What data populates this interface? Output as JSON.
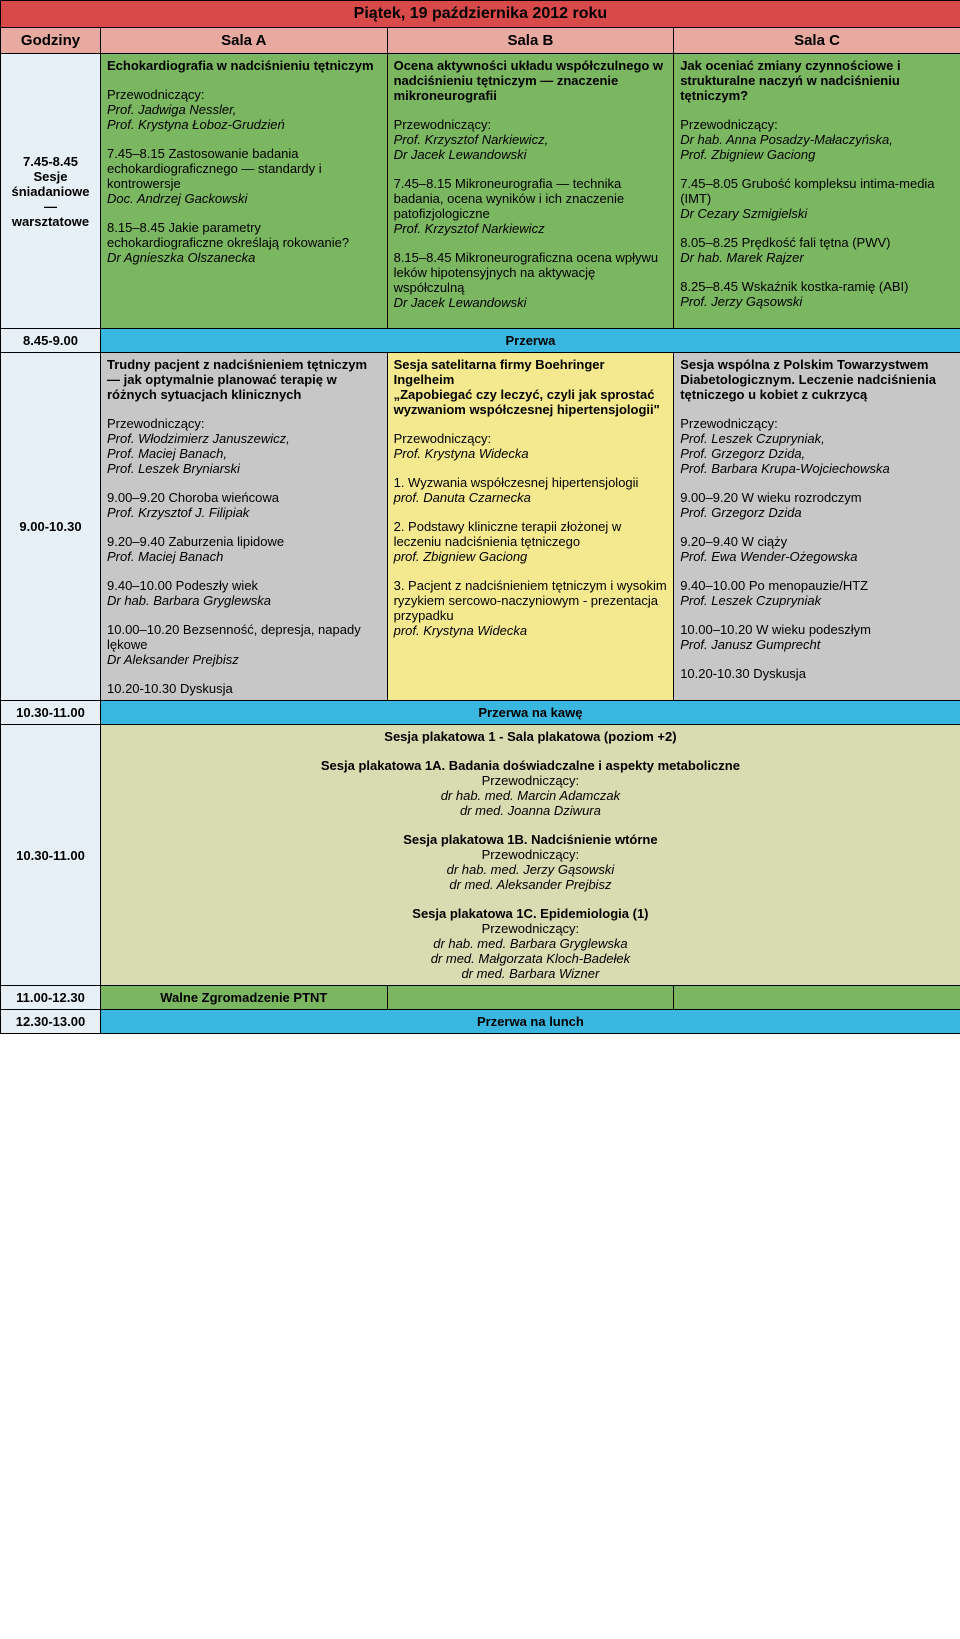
{
  "colors": {
    "day_header": "#d84a4a",
    "col_header": "#e8a9a0",
    "time_cell": "#e7eff7",
    "green": "#7bb661",
    "cyan": "#3ab7e0",
    "grey": "#c7c7c7",
    "yellow": "#f4e98f",
    "beige": "#d9dbb1",
    "border": "#000000"
  },
  "day_title": "Piątek, 19 października 2012 roku",
  "columns": {
    "time": "Godziny",
    "roomA": "Sala A",
    "roomB": "Sala B",
    "roomC": "Sala C"
  },
  "r1": {
    "time": "7.45-8.45\nSesje śniadaniowe — warsztatowe",
    "A": {
      "title": "Echokardiografia w nadciśnieniu tętniczym",
      "chair_label": "Przewodniczący:",
      "chair1": "Prof. Jadwiga Nessler,",
      "chair2": "Prof. Krystyna Łoboz-Grudzień",
      "t1": "7.45–8.15 Zastosowanie badania echokardiograficznego — standardy i kontrowersje",
      "s1": "Doc. Andrzej Gackowski",
      "t2": "8.15–8.45 Jakie parametry echokardiograficzne określają rokowanie?",
      "s2": "Dr Agnieszka Olszanecka"
    },
    "B": {
      "title": "Ocena aktywności układu współczulnego w nadciśnieniu tętniczym — znaczenie mikroneurografii",
      "chair_label": "Przewodniczący:",
      "chair1": "Prof. Krzysztof Narkiewicz,",
      "chair2": "Dr Jacek Lewandowski",
      "t1": "7.45–8.15 Mikroneurografia — technika badania, ocena wyników i ich znaczenie patofizjologiczne",
      "s1": "Prof. Krzysztof Narkiewicz",
      "t2": "8.15–8.45 Mikroneurograficzna ocena wpływu leków hipotensyjnych na aktywację współczulną",
      "s2": "Dr Jacek Lewandowski"
    },
    "C": {
      "title": "Jak oceniać zmiany czynnościowe i strukturalne naczyń w nadciśnieniu tętniczym?",
      "chair_label": "Przewodniczący:",
      "chair1": "Dr hab. Anna Posadzy-Małaczyńska,",
      "chair2": "Prof. Zbigniew Gaciong",
      "t1": "7.45–8.05 Grubość kompleksu intima-media (IMT)",
      "s1": "Dr Cezary Szmigielski",
      "t2": "8.05–8.25 Prędkość fali tętna (PWV)",
      "s2": "Dr hab. Marek Rajzer",
      "t3": "8.25–8.45 Wskaźnik kostka-ramię (ABI)",
      "s3": "Prof. Jerzy Gąsowski"
    }
  },
  "break1": {
    "time": "8.45-9.00",
    "label": "Przerwa"
  },
  "r2": {
    "time": "9.00-10.30",
    "A": {
      "title": "Trudny pacjent z nadciśnieniem tętniczym — jak optymalnie planować terapię w różnych sytuacjach klinicznych",
      "chair_label": "Przewodniczący:",
      "chair1": "Prof. Włodzimierz Januszewicz,",
      "chair2": "Prof. Maciej Banach,",
      "chair3": "Prof. Leszek Bryniarski",
      "t1": "9.00–9.20 Choroba wieńcowa",
      "s1": "Prof. Krzysztof J. Filipiak",
      "t2": "9.20–9.40 Zaburzenia lipidowe",
      "s2": "Prof. Maciej Banach",
      "t3": "9.40–10.00 Podeszły wiek",
      "s3": "Dr hab. Barbara Gryglewska",
      "t4": "10.00–10.20 Bezsenność, depresja, napady lękowe",
      "s4": "Dr Aleksander Prejbisz",
      "disc": "10.20-10.30 Dyskusja"
    },
    "B": {
      "title1": "Sesja satelitarna firmy Boehringer Ingelheim",
      "title2": "„Zapobiegać czy leczyć, czyli jak sprostać wyzwaniom współczesnej hipertensjologii\"",
      "chair_label": "Przewodniczący:",
      "chair1": "Prof. Krystyna Widecka",
      "t1": "1. Wyzwania współczesnej hipertensjologii",
      "s1": "prof. Danuta Czarnecka",
      "t2": "2. Podstawy kliniczne terapii złożonej w leczeniu nadciśnienia tętniczego",
      "s2": "prof. Zbigniew Gaciong",
      "t3": "3. Pacjent z nadciśnieniem tętniczym i wysokim ryzykiem sercowo-naczyniowym - prezentacja przypadku",
      "s3": "prof. Krystyna Widecka"
    },
    "C": {
      "title": "Sesja wspólna z Polskim Towarzystwem Diabetologicznym. Leczenie nadciśnienia tętniczego u kobiet z cukrzycą",
      "chair_label": "Przewodniczący:",
      "chair1": "Prof. Leszek Czupryniak,",
      "chair2": "Prof. Grzegorz Dzida,",
      "chair3": "Prof. Barbara Krupa-Wojciechowska",
      "t1": "9.00–9.20 W wieku rozrodczym",
      "s1": "Prof. Grzegorz Dzida",
      "t2": "9.20–9.40 W ciąży",
      "s2": "Prof. Ewa Wender-Ożegowska",
      "t3": "9.40–10.00 Po menopauzie/HTZ",
      "s3": "Prof. Leszek Czupryniak",
      "t4": "10.00–10.20 W wieku podeszłym",
      "s4": "Prof. Janusz Gumprecht",
      "disc": "10.20-10.30 Dyskusja"
    }
  },
  "break2": {
    "time": "10.30-11.00",
    "label": "Przerwa na kawę"
  },
  "poster": {
    "time": "10.30-11.00",
    "header": "Sesja plakatowa 1 - Sala plakatowa (poziom +2)",
    "sA_title": "Sesja plakatowa 1A. Badania doświadczalne i aspekty metaboliczne",
    "chair_label": "Przewodniczący:",
    "sA_c1": "dr hab. med. Marcin Adamczak",
    "sA_c2": "dr med. Joanna Dziwura",
    "sB_title": "Sesja plakatowa 1B. Nadciśnienie wtórne",
    "sB_c1": "dr hab. med. Jerzy Gąsowski",
    "sB_c2": "dr med. Aleksander Prejbisz",
    "sC_title": "Sesja plakatowa 1C. Epidemiologia (1)",
    "sC_c1": "dr hab. med. Barbara Gryglewska",
    "sC_c2": "dr med. Małgorzata Kloch-Badełek",
    "sC_c3": "dr med. Barbara Wizner"
  },
  "walne": {
    "time": "11.00-12.30",
    "label": "Walne Zgromadzenie PTNT"
  },
  "break3": {
    "time": "12.30-13.00",
    "label": "Przerwa na lunch"
  }
}
